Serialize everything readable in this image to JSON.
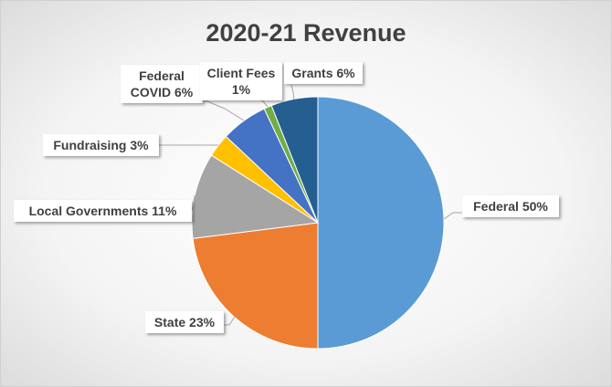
{
  "chart_data": {
    "type": "pie",
    "title": "2020-21 Revenue",
    "categories": [
      "Federal",
      "State",
      "Local Governments",
      "Fundraising",
      "Federal COVID",
      "Client Fees",
      "Grants"
    ],
    "values": [
      50,
      23,
      11,
      3,
      6,
      1,
      6
    ],
    "value_labels": [
      "50%",
      "23%",
      "11%",
      "3%",
      "6%",
      "1%",
      "6%"
    ],
    "colors": [
      "#5b9bd5",
      "#ed7d31",
      "#a5a5a5",
      "#ffc000",
      "#4472c4",
      "#70ad47",
      "#255e91"
    ]
  }
}
